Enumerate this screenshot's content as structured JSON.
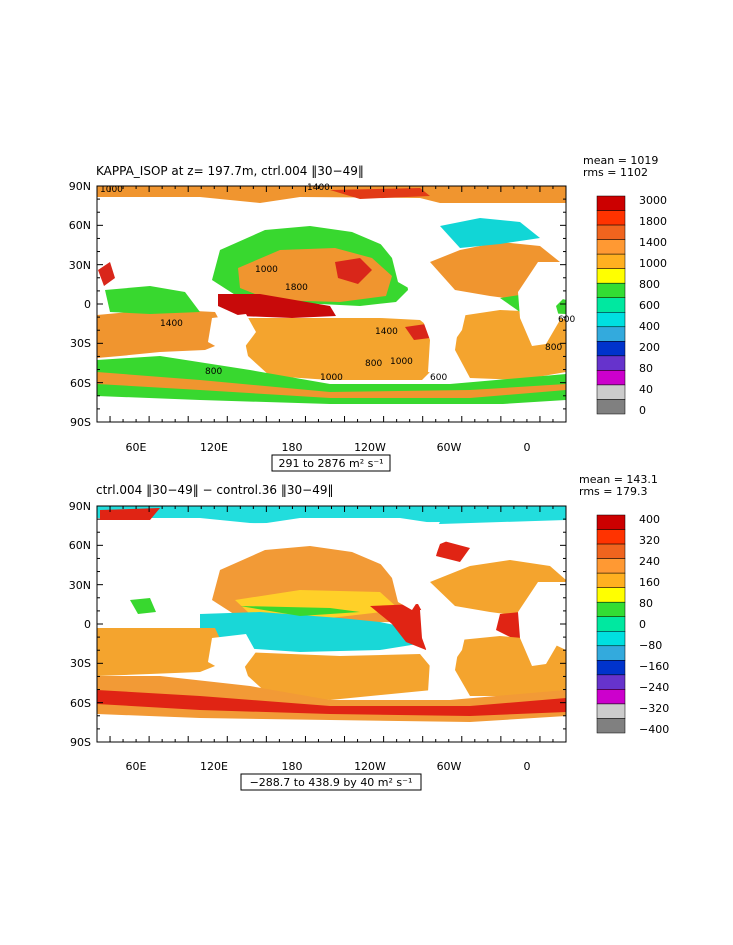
{
  "panels": [
    {
      "title": "KAPPA_ISOP at z= 197.7m, ctrl.004 ‖30−49‖",
      "stats": {
        "mean": "mean = 1019",
        "rms": "rms = 1102"
      },
      "range_text": "291 to 2876 m² s⁻¹",
      "lat_labels": [
        "90N",
        "60N",
        "30N",
        "0",
        "30S",
        "60S",
        "90S"
      ],
      "lon_labels": [
        "60E",
        "120E",
        "180",
        "120W",
        "60W",
        "0"
      ],
      "colorbar": {
        "labels": [
          "3000",
          "1800",
          "1400",
          "1000",
          "800",
          "600",
          "400",
          "200",
          "80",
          "40",
          "0"
        ],
        "colors": [
          "#cc0000",
          "#ff3300",
          "#f0641e",
          "#ff9933",
          "#ffb020",
          "#ffff00",
          "#33dd33",
          "#00e8a0",
          "#00e0e0",
          "#33aadd",
          "#0033cc",
          "#6633cc",
          "#cc00cc",
          "#cccccc",
          "#808080"
        ]
      },
      "contour_labels": [
        "1400",
        "1000",
        "1800",
        "1400",
        "1400",
        "1000",
        "800",
        "600",
        "1000",
        "1000",
        "800",
        "600",
        "800"
      ]
    },
    {
      "title": "ctrl.004 ‖30−49‖ − control.36 ‖30−49‖",
      "stats": {
        "mean": "mean = 143.1",
        "rms": "rms = 179.3"
      },
      "range_text": "−288.7 to 438.9 by 40 m² s⁻¹",
      "lat_labels": [
        "90N",
        "60N",
        "30N",
        "0",
        "30S",
        "60S",
        "90S"
      ],
      "lon_labels": [
        "60E",
        "120E",
        "180",
        "120W",
        "60W",
        "0"
      ],
      "colorbar": {
        "labels": [
          "400",
          "320",
          "240",
          "160",
          "80",
          "0",
          "−80",
          "−160",
          "−240",
          "−320",
          "−400"
        ],
        "colors": [
          "#cc0000",
          "#ff3300",
          "#f0641e",
          "#ff9933",
          "#ffb020",
          "#ffff00",
          "#33dd33",
          "#00e8a0",
          "#00e0e0",
          "#33aadd",
          "#0033cc",
          "#6633cc",
          "#cc00cc",
          "#cccccc",
          "#808080"
        ]
      }
    }
  ]
}
